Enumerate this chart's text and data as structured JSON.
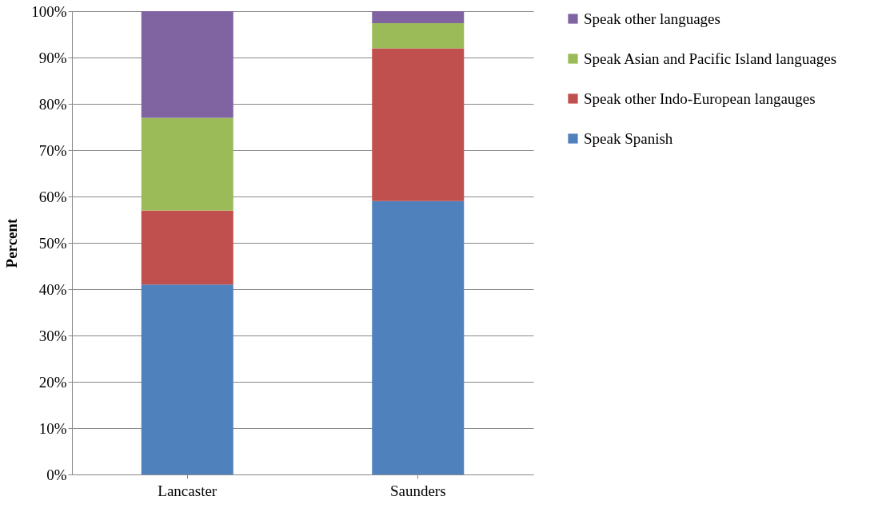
{
  "chart_data": {
    "type": "bar",
    "stacked": true,
    "ylabel": "Percent",
    "categories": [
      "Lancaster",
      "Saunders"
    ],
    "series": [
      {
        "name": "Speak Spanish",
        "color": "#4f81bd",
        "values": [
          41,
          59
        ]
      },
      {
        "name": "Speak other Indo-European langauges",
        "color": "#c0504d",
        "values": [
          16,
          33
        ]
      },
      {
        "name": "Speak Asian and Pacific Island languages",
        "color": "#9bbb59",
        "values": [
          20,
          5.4
        ]
      },
      {
        "name": "Speak other languages",
        "color": "#8064a2",
        "values": [
          23,
          2.6
        ]
      }
    ],
    "ylim": [
      0,
      100
    ],
    "yticks": [
      {
        "value": 0,
        "label": "0%"
      },
      {
        "value": 10,
        "label": "10%"
      },
      {
        "value": 20,
        "label": "20%"
      },
      {
        "value": 30,
        "label": "30%"
      },
      {
        "value": 40,
        "label": "40%"
      },
      {
        "value": 50,
        "label": "50%"
      },
      {
        "value": 60,
        "label": "60%"
      },
      {
        "value": 70,
        "label": "70%"
      },
      {
        "value": 80,
        "label": "80%"
      },
      {
        "value": 90,
        "label": "90%"
      },
      {
        "value": 100,
        "label": "100%"
      }
    ],
    "grid": "y",
    "legend": "right"
  }
}
